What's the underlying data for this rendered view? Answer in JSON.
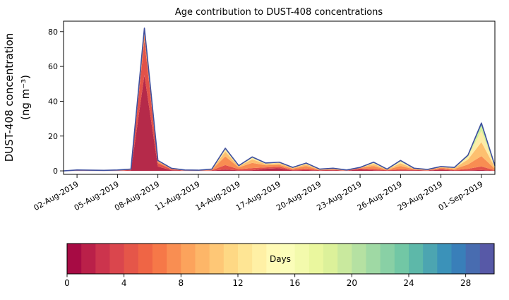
{
  "title": "Age contribution to DUST-408 concentrations",
  "y_axis": {
    "label_line1": "DUST-408 concentration",
    "label_line2": "(ng m⁻³)"
  },
  "colorbar": {
    "label": "Days",
    "min": 0,
    "max": 30,
    "segments": 30,
    "ticks": [
      0,
      4,
      8,
      12,
      16,
      20,
      24,
      28
    ],
    "colors": [
      "#9e0142",
      "#d53e4f",
      "#f46d43",
      "#fdae61",
      "#fee08b",
      "#ffffbf",
      "#e6f598",
      "#abdda4",
      "#66c2a5",
      "#3288bd",
      "#5e4fa2"
    ]
  },
  "chart_data": {
    "type": "area",
    "stacked": true,
    "title": "Age contribution to DUST-408 concentrations",
    "xlabel": "",
    "ylabel": "DUST-408 concentration (ng m-3)",
    "ylim": [
      -2,
      86
    ],
    "yticks": [
      0,
      20,
      40,
      60,
      80
    ],
    "outline_color": "#3f4f9f",
    "x": [
      "01-Aug-2019",
      "02-Aug-2019",
      "03-Aug-2019",
      "04-Aug-2019",
      "05-Aug-2019",
      "06-Aug-2019",
      "07-Aug-2019",
      "08-Aug-2019",
      "09-Aug-2019",
      "10-Aug-2019",
      "11-Aug-2019",
      "12-Aug-2019",
      "13-Aug-2019",
      "14-Aug-2019",
      "15-Aug-2019",
      "16-Aug-2019",
      "17-Aug-2019",
      "18-Aug-2019",
      "19-Aug-2019",
      "20-Aug-2019",
      "21-Aug-2019",
      "22-Aug-2019",
      "23-Aug-2019",
      "24-Aug-2019",
      "25-Aug-2019",
      "26-Aug-2019",
      "27-Aug-2019",
      "28-Aug-2019",
      "29-Aug-2019",
      "30-Aug-2019",
      "31-Aug-2019",
      "01-Sep-2019",
      "02-Sep-2019"
    ],
    "x_tick_indices": [
      1,
      4,
      7,
      10,
      13,
      16,
      19,
      22,
      25,
      28,
      31
    ],
    "x_tick_labels": [
      "02-Aug-2019",
      "05-Aug-2019",
      "08-Aug-2019",
      "11-Aug-2019",
      "14-Aug-2019",
      "17-Aug-2019",
      "20-Aug-2019",
      "23-Aug-2019",
      "26-Aug-2019",
      "29-Aug-2019",
      "01-Sep-2019"
    ],
    "series": [
      {
        "name": "0-4 days",
        "color": "#b52a4a",
        "values": [
          0,
          0.1,
          0.08,
          0.06,
          0.1,
          0.3,
          55.0,
          2.5,
          0.4,
          0.1,
          0.08,
          0.2,
          0.8,
          0.3,
          0.4,
          1.2,
          1.5,
          0.3,
          0.5,
          0.2,
          0.3,
          0.1,
          0.9,
          0.4,
          0.2,
          0.3,
          0.3,
          0.15,
          0.7,
          0.2,
          0.3,
          0.5,
          0.1
        ]
      },
      {
        "name": "4-8 days",
        "color": "#e25249",
        "values": [
          0,
          0.1,
          0.08,
          0.06,
          0.1,
          0.3,
          20.0,
          2.0,
          0.5,
          0.1,
          0.08,
          0.2,
          2.5,
          0.7,
          1.2,
          0.8,
          0.9,
          0.4,
          0.9,
          0.2,
          0.3,
          0.1,
          0.5,
          0.8,
          0.2,
          0.7,
          0.3,
          0.15,
          0.5,
          0.3,
          0.9,
          2.0,
          0.3
        ]
      },
      {
        "name": "8-12 days",
        "color": "#f88d52",
        "values": [
          0,
          0.1,
          0.08,
          0.06,
          0.1,
          0.2,
          4.0,
          0.8,
          0.3,
          0.13,
          0.1,
          0.25,
          5.0,
          1.0,
          3.0,
          1.2,
          1.1,
          0.6,
          1.4,
          0.25,
          0.4,
          0.13,
          0.3,
          1.6,
          0.25,
          1.8,
          0.4,
          0.2,
          0.6,
          0.6,
          2.5,
          6.0,
          0.8
        ]
      },
      {
        "name": "12-16 days",
        "color": "#fdc070",
        "values": [
          0,
          0.1,
          0.08,
          0.06,
          0.1,
          0.1,
          1.5,
          0.4,
          0.2,
          0.1,
          0.08,
          0.2,
          2.8,
          0.6,
          2.0,
          0.8,
          0.9,
          0.4,
          1.0,
          0.2,
          0.3,
          0.1,
          0.2,
          1.2,
          0.2,
          1.6,
          0.3,
          0.16,
          0.4,
          0.5,
          2.8,
          8.0,
          0.9
        ]
      },
      {
        "name": "16-20 days",
        "color": "#feeca7",
        "values": [
          0,
          0.05,
          0.04,
          0.03,
          0.05,
          0.05,
          0.8,
          0.2,
          0.06,
          0.05,
          0.04,
          0.1,
          1.2,
          0.25,
          0.9,
          0.3,
          0.35,
          0.2,
          0.45,
          0.1,
          0.15,
          0.05,
          0.06,
          0.6,
          0.1,
          0.9,
          0.15,
          0.08,
          0.2,
          0.25,
          1.6,
          6.5,
          0.55
        ]
      },
      {
        "name": "20-24 days",
        "color": "#d7ef9b",
        "values": [
          0,
          0.03,
          0.02,
          0.02,
          0.03,
          0.03,
          0.4,
          0.06,
          0.02,
          0.02,
          0.01,
          0.03,
          0.4,
          0.1,
          0.3,
          0.15,
          0.15,
          0.06,
          0.15,
          0.03,
          0.04,
          0.02,
          0.03,
          0.25,
          0.04,
          0.4,
          0.06,
          0.04,
          0.07,
          0.1,
          0.6,
          3.0,
          0.25
        ]
      },
      {
        "name": "24-28 days",
        "color": "#77c8a4",
        "values": [
          0,
          0.01,
          0.01,
          0.01,
          0.01,
          0.01,
          0.2,
          0.03,
          0.01,
          0.0,
          0.0,
          0.02,
          0.2,
          0.03,
          0.15,
          0.04,
          0.07,
          0.03,
          0.07,
          0.02,
          0.02,
          0.0,
          0.01,
          0.1,
          0.02,
          0.2,
          0.03,
          0.02,
          0.02,
          0.04,
          0.2,
          1.0,
          0.07
        ]
      },
      {
        "name": "28+ days",
        "color": "#4b7db8",
        "values": [
          0,
          0.01,
          0.0,
          0.01,
          0.01,
          0.01,
          0.1,
          0.01,
          0.01,
          0.0,
          0.0,
          0.01,
          0.1,
          0.02,
          0.05,
          0.01,
          0.03,
          0.01,
          0.03,
          0.01,
          0.01,
          0.0,
          0.0,
          0.05,
          0.01,
          0.1,
          0.01,
          0.01,
          0.01,
          0.01,
          0.1,
          0.5,
          0.03
        ]
      }
    ]
  }
}
